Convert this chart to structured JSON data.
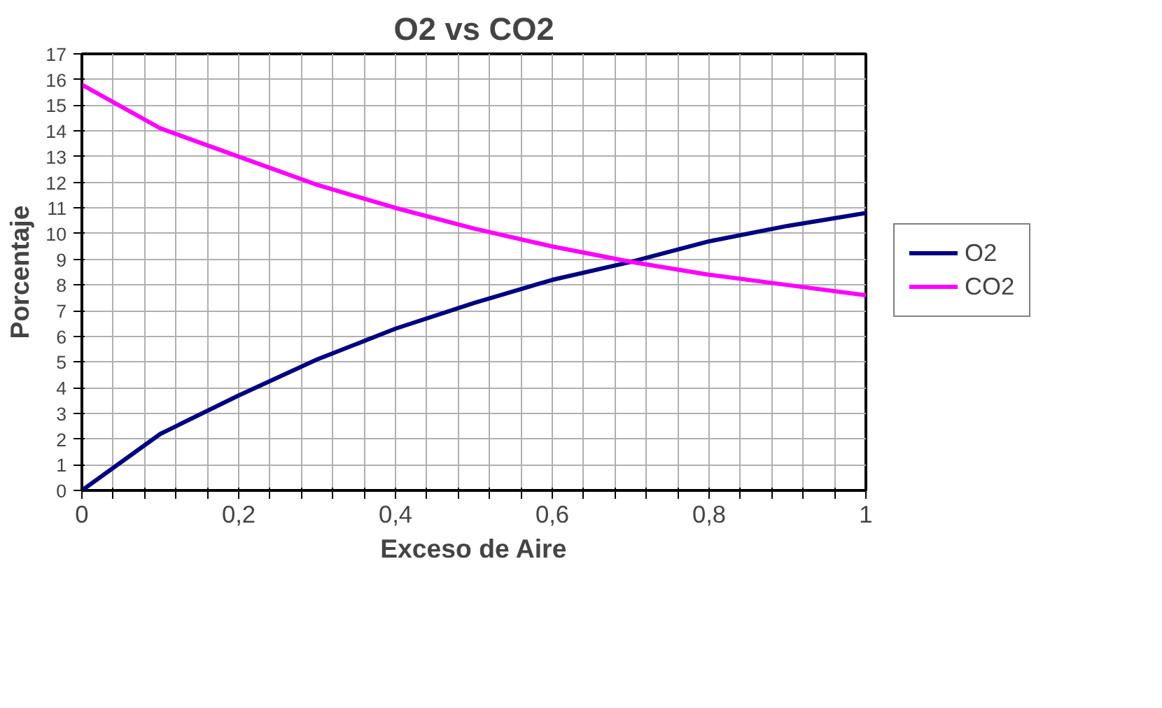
{
  "chart_data": {
    "type": "line",
    "title": "O2 vs CO2",
    "xlabel": "Exceso de Aire",
    "ylabel": "Porcentaje",
    "x": [
      0,
      0.1,
      0.2,
      0.3,
      0.4,
      0.5,
      0.6,
      0.7,
      0.8,
      0.9,
      1
    ],
    "series": [
      {
        "name": "O2",
        "color": "#000080",
        "values": [
          0,
          2.2,
          3.7,
          5.1,
          6.3,
          7.3,
          8.2,
          8.9,
          9.7,
          10.3,
          10.8
        ]
      },
      {
        "name": "CO2",
        "color": "#ff00ff",
        "values": [
          15.8,
          14.1,
          13.0,
          11.9,
          11.0,
          10.2,
          9.5,
          8.9,
          8.4,
          8.0,
          7.6
        ]
      }
    ],
    "xlim": [
      0,
      1
    ],
    "ylim": [
      0,
      17
    ],
    "xticks": [
      {
        "value": 0,
        "label": "0"
      },
      {
        "value": 0.04,
        "label": null
      },
      {
        "value": 0.08,
        "label": null
      },
      {
        "value": 0.12,
        "label": null
      },
      {
        "value": 0.16,
        "label": null
      },
      {
        "value": 0.2,
        "label": "0,2"
      },
      {
        "value": 0.24,
        "label": null
      },
      {
        "value": 0.28,
        "label": null
      },
      {
        "value": 0.32,
        "label": null
      },
      {
        "value": 0.36,
        "label": null
      },
      {
        "value": 0.4,
        "label": "0,4"
      },
      {
        "value": 0.44,
        "label": null
      },
      {
        "value": 0.48,
        "label": null
      },
      {
        "value": 0.52,
        "label": null
      },
      {
        "value": 0.56,
        "label": null
      },
      {
        "value": 0.6,
        "label": "0,6"
      },
      {
        "value": 0.64,
        "label": null
      },
      {
        "value": 0.68,
        "label": null
      },
      {
        "value": 0.72,
        "label": null
      },
      {
        "value": 0.76,
        "label": null
      },
      {
        "value": 0.8,
        "label": "0,8"
      },
      {
        "value": 0.84,
        "label": null
      },
      {
        "value": 0.88,
        "label": null
      },
      {
        "value": 0.92,
        "label": null
      },
      {
        "value": 0.96,
        "label": null
      },
      {
        "value": 1,
        "label": "1"
      }
    ],
    "yticks": [
      0,
      1,
      2,
      3,
      4,
      5,
      6,
      7,
      8,
      9,
      10,
      11,
      12,
      13,
      14,
      15,
      16,
      17
    ],
    "grid": true,
    "legend": "right",
    "marker": "none",
    "line_style": "solid"
  }
}
